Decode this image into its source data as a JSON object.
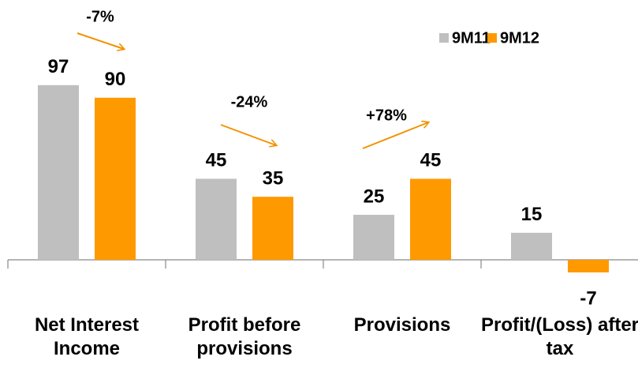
{
  "chart_data": {
    "type": "bar",
    "categories": [
      "Net Interest Income",
      "Profit before provisions",
      "Provisions",
      "Profit/(Loss) after tax"
    ],
    "series": [
      {
        "name": "9M11",
        "color": "#bfbfbf",
        "values": [
          97,
          45,
          25,
          15
        ]
      },
      {
        "name": "9M12",
        "color": "#ff9900",
        "values": [
          90,
          35,
          45,
          -7
        ]
      }
    ],
    "annotations": [
      "-7%",
      "-24%",
      "+78%"
    ],
    "legend": "top-right"
  }
}
